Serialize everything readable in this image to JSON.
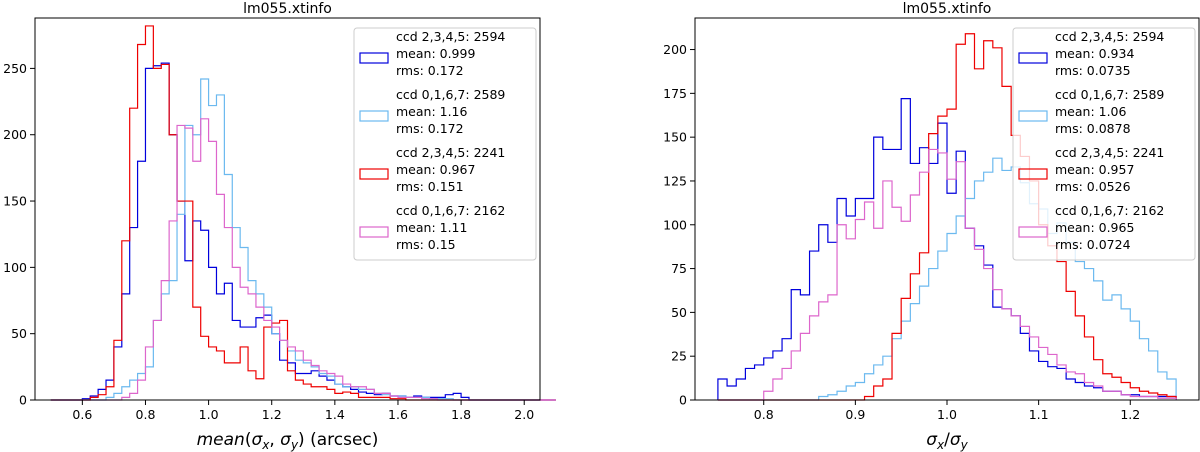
{
  "chart_data": [
    {
      "type": "histogram",
      "title": "lm055.xtinfo",
      "xlabel": "mean(σx, σy) (arcsec)",
      "xlabel_parts": {
        "func": "mean",
        "open": "(",
        "sig1": "σ",
        "sub1": "x",
        "comma": ", ",
        "sig2": "σ",
        "sub2": "y",
        "close": ")",
        "unit": " (arcsec)"
      },
      "ylabel": "",
      "xlim": [
        0.45,
        2.05
      ],
      "ylim": [
        0,
        288
      ],
      "xticks": [
        0.6,
        0.8,
        1.0,
        1.2,
        1.4,
        1.6,
        1.8,
        2.0
      ],
      "xtick_labels": [
        "0.6",
        "0.8",
        "1.0",
        "1.2",
        "1.4",
        "1.6",
        "1.8",
        "2.0"
      ],
      "yticks": [
        0,
        50,
        100,
        150,
        200,
        250
      ],
      "ytick_labels": [
        "0",
        "50",
        "100",
        "150",
        "200",
        "250"
      ],
      "bin_start": 0.5,
      "bin_width": 0.025,
      "legend_position": "top-right",
      "series": [
        {
          "name": "ccd 2,3,4,5: 2594",
          "mean": "mean: 0.999",
          "rms": "rms: 0.172",
          "color": "#0000dd",
          "values": [
            0,
            0,
            0,
            0,
            1,
            3,
            8,
            15,
            40,
            80,
            130,
            180,
            250,
            252,
            254,
            200,
            150,
            105,
            135,
            128,
            100,
            80,
            88,
            60,
            55,
            55,
            62,
            64,
            50,
            30,
            28,
            20,
            20,
            22,
            18,
            15,
            12,
            10,
            8,
            6,
            5,
            4,
            5,
            3,
            3,
            2,
            3,
            2,
            2,
            2,
            4,
            5,
            2,
            0,
            0,
            0,
            0,
            0,
            0,
            0,
            0,
            0,
            0,
            0
          ]
        },
        {
          "name": "ccd 0,1,6,7: 2589",
          "mean": "mean: 1.16",
          "rms": "rms: 0.172",
          "color": "#6bb9ef",
          "values": [
            0,
            0,
            0,
            0,
            0,
            0,
            0,
            2,
            5,
            10,
            15,
            20,
            25,
            60,
            80,
            90,
            140,
            207,
            200,
            242,
            222,
            230,
            170,
            130,
            115,
            90,
            80,
            70,
            50,
            45,
            37,
            30,
            28,
            25,
            20,
            18,
            12,
            10,
            10,
            8,
            8,
            5,
            4,
            3,
            3,
            2,
            2,
            2,
            1,
            1,
            1,
            0,
            0,
            0,
            0,
            0,
            0,
            0,
            0,
            0,
            0,
            0,
            0,
            0
          ]
        },
        {
          "name": "ccd 2,3,4,5: 2241",
          "mean": "mean: 0.967",
          "rms": "rms: 0.151",
          "color": "#ee0000",
          "values": [
            0,
            0,
            0,
            0,
            0,
            2,
            4,
            10,
            45,
            120,
            220,
            268,
            282,
            250,
            253,
            200,
            150,
            150,
            70,
            48,
            40,
            37,
            28,
            28,
            40,
            22,
            16,
            55,
            58,
            60,
            22,
            15,
            12,
            10,
            10,
            8,
            5,
            6,
            5,
            2,
            2,
            2,
            2,
            1,
            1,
            0,
            0,
            0,
            0,
            0,
            0,
            0,
            0,
            0,
            0,
            0,
            0,
            0,
            0,
            0,
            0,
            0,
            0,
            0
          ]
        },
        {
          "name": "ccd 0,1,6,7: 2162",
          "mean": "mean: 1.11",
          "rms": "rms: 0.15",
          "color": "#dd66cc",
          "values": [
            0,
            0,
            0,
            0,
            0,
            0,
            0,
            0,
            0,
            2,
            5,
            15,
            40,
            60,
            90,
            135,
            207,
            205,
            180,
            212,
            195,
            155,
            130,
            100,
            85,
            80,
            70,
            60,
            55,
            45,
            40,
            37,
            30,
            26,
            22,
            20,
            18,
            12,
            10,
            10,
            8,
            5,
            5,
            3,
            2,
            2,
            2,
            1,
            1,
            0,
            0,
            0,
            0,
            0,
            0,
            0,
            0,
            0,
            0,
            0,
            0,
            0,
            0,
            0
          ]
        }
      ]
    },
    {
      "type": "histogram",
      "title": "lm055.xtinfo",
      "xlabel": "σx/σy",
      "xlabel_parts": {
        "sig1": "σ",
        "sub1": "x",
        "slash": "/",
        "sig2": "σ",
        "sub2": "y"
      },
      "ylabel": "",
      "xlim": [
        0.725,
        1.275
      ],
      "ylim": [
        0,
        218
      ],
      "xticks": [
        0.8,
        0.9,
        1.0,
        1.1,
        1.2
      ],
      "xtick_labels": [
        "0.8",
        "0.9",
        "1.0",
        "1.1",
        "1.2"
      ],
      "yticks": [
        0,
        25,
        50,
        75,
        100,
        125,
        150,
        175,
        200
      ],
      "ytick_labels": [
        "0",
        "25",
        "50",
        "75",
        "100",
        "125",
        "150",
        "175",
        "200"
      ],
      "bin_start": 0.75,
      "bin_width": 0.01,
      "legend_position": "top-right",
      "series": [
        {
          "name": "ccd 2,3,4,5: 2594",
          "mean": "mean: 0.934",
          "rms": "rms: 0.0735",
          "color": "#0000dd",
          "values": [
            12,
            8,
            12,
            18,
            20,
            24,
            28,
            35,
            63,
            60,
            85,
            100,
            90,
            115,
            105,
            115,
            115,
            150,
            143,
            143,
            172,
            135,
            144,
            135,
            158,
            118,
            142,
            98,
            88,
            77,
            53,
            52,
            48,
            38,
            28,
            22,
            19,
            18,
            12,
            10,
            8,
            7,
            5,
            5,
            3,
            3,
            2,
            2,
            2,
            2
          ]
        },
        {
          "name": "ccd 0,1,6,7: 2589",
          "mean": "mean: 1.06",
          "rms": "rms: 0.0878",
          "color": "#6bb9ef",
          "values": [
            0,
            0,
            0,
            0,
            0,
            0,
            0,
            0,
            0,
            0,
            0,
            2,
            3,
            5,
            8,
            10,
            15,
            20,
            25,
            35,
            45,
            55,
            65,
            75,
            85,
            95,
            105,
            115,
            125,
            130,
            138,
            131,
            133,
            124,
            112,
            109,
            95,
            101,
            90,
            79,
            75,
            68,
            57,
            60,
            52,
            45,
            35,
            28,
            16,
            12
          ]
        },
        {
          "name": "ccd 2,3,4,5: 2241",
          "mean": "mean: 0.957",
          "rms": "rms: 0.0526",
          "color": "#ee0000",
          "values": [
            0,
            0,
            0,
            0,
            0,
            0,
            0,
            0,
            0,
            0,
            0,
            0,
            0,
            0,
            0,
            0,
            2,
            8,
            12,
            38,
            58,
            72,
            84,
            152,
            162,
            166,
            203,
            209,
            189,
            205,
            201,
            179,
            151,
            139,
            125,
            100,
            88,
            79,
            62,
            48,
            36,
            23,
            15,
            13,
            10,
            7,
            5,
            4,
            3,
            2
          ]
        },
        {
          "name": "ccd 0,1,6,7: 2162",
          "mean": "mean: 0.965",
          "rms": "rms: 0.0724",
          "color": "#dd66cc",
          "values": [
            0,
            0,
            0,
            0,
            0,
            5,
            12,
            18,
            28,
            38,
            48,
            56,
            60,
            100,
            92,
            103,
            113,
            98,
            125,
            110,
            102,
            117,
            130,
            143,
            141,
            126,
            136,
            98,
            86,
            75,
            63,
            52,
            48,
            42,
            36,
            30,
            26,
            20,
            16,
            15,
            10,
            8,
            5,
            5,
            3,
            2,
            2,
            2,
            1,
            1
          ]
        }
      ]
    }
  ]
}
